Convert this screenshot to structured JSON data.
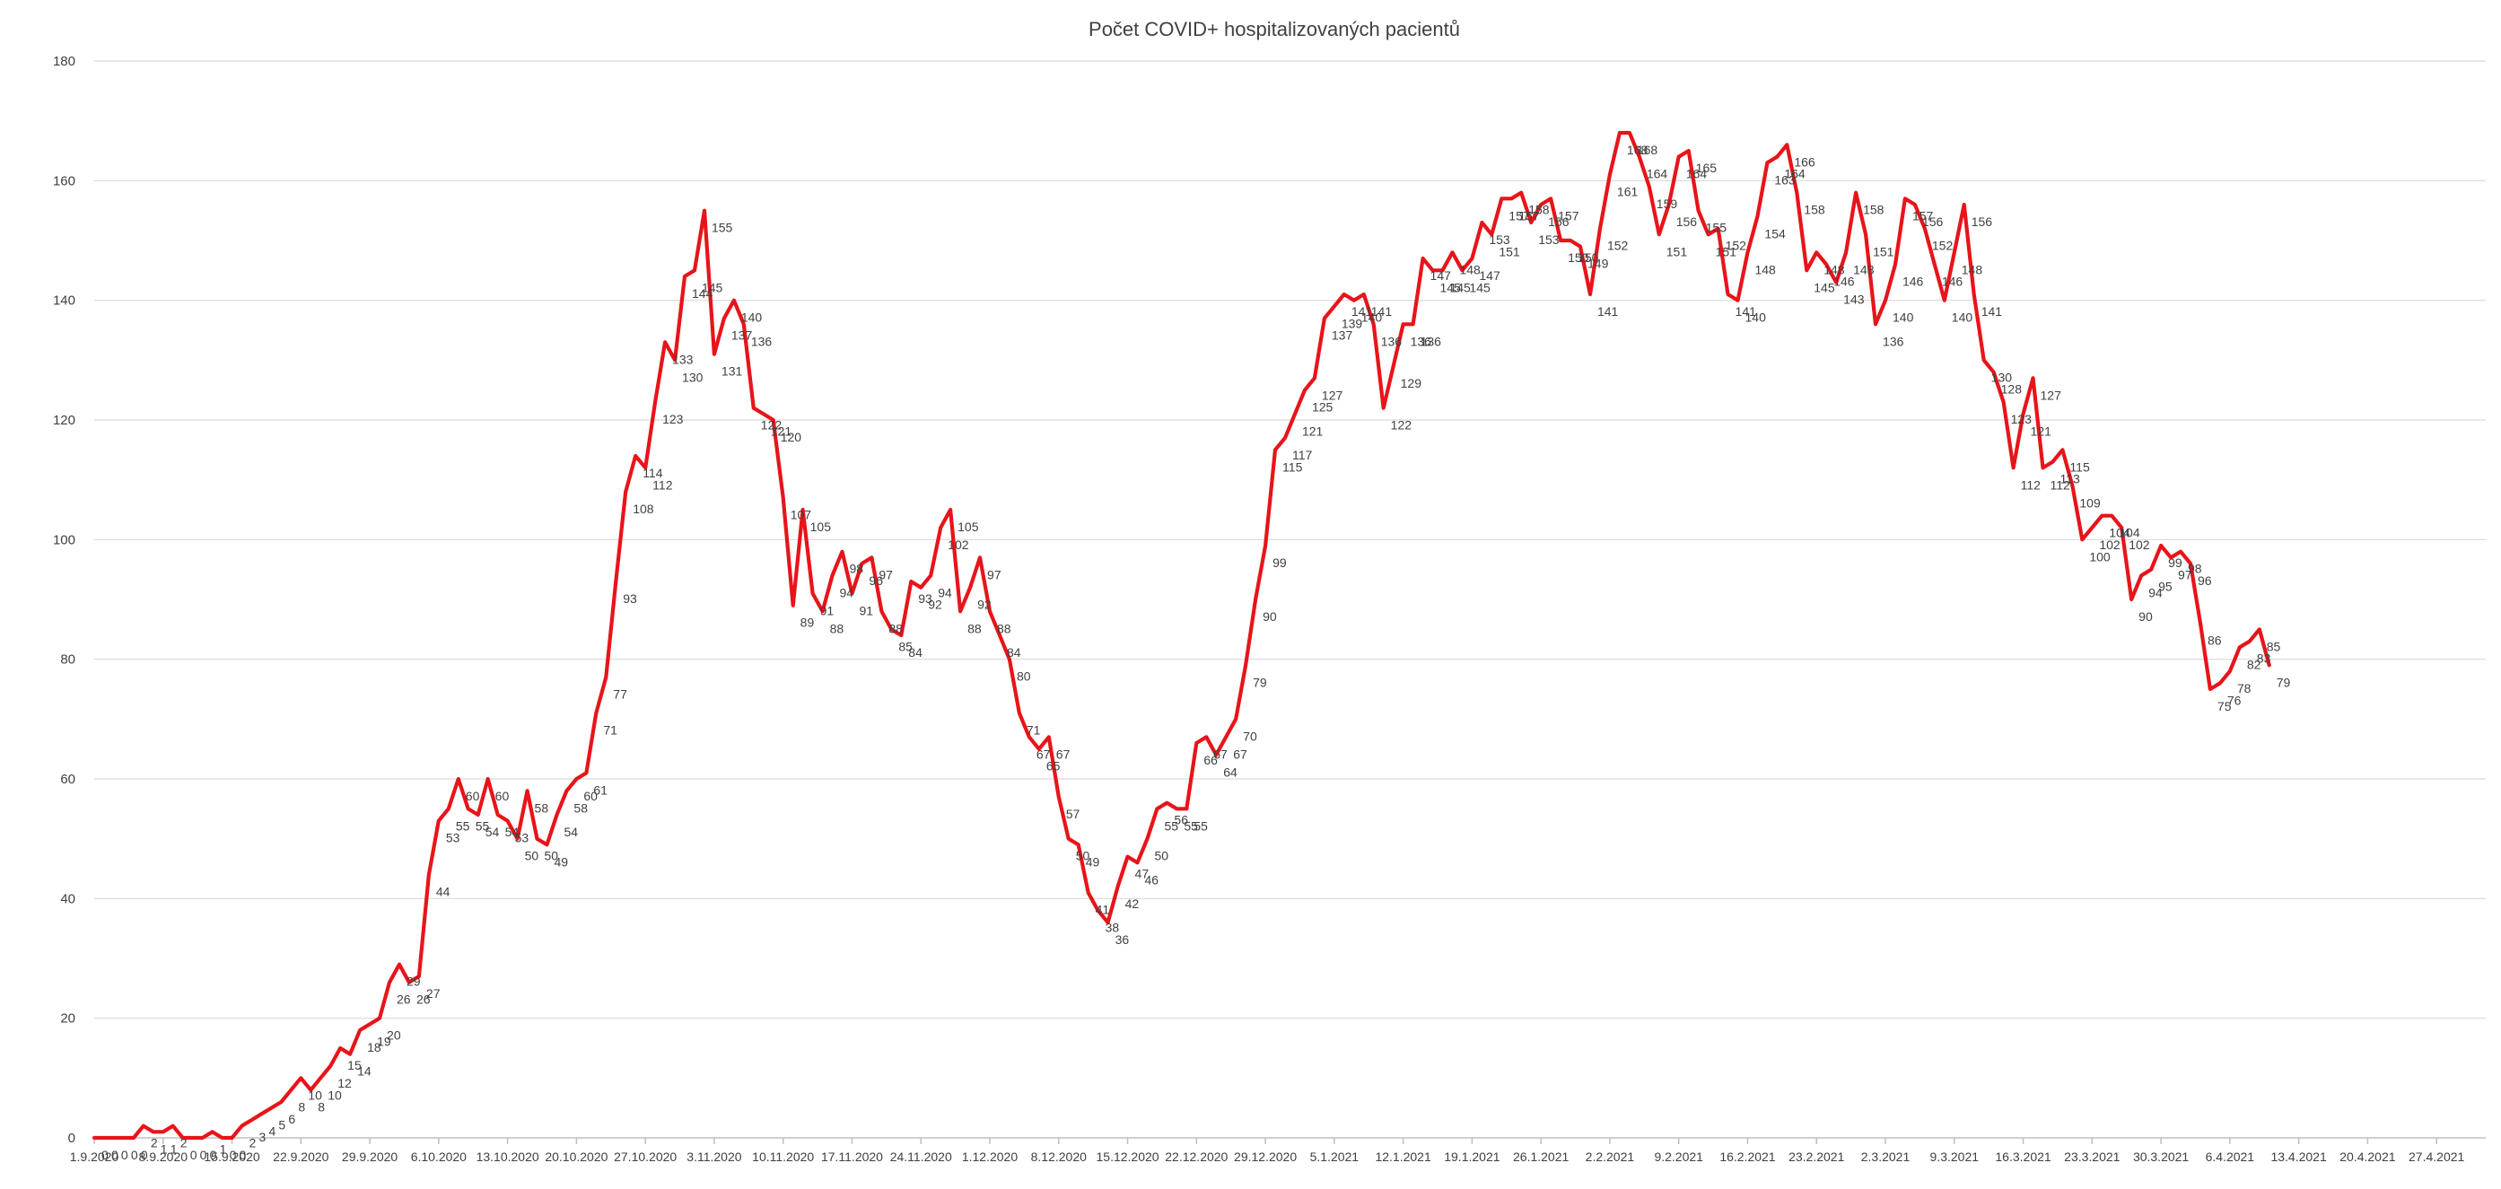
{
  "chart_data": {
    "type": "line",
    "title": "Počet COVID+ hospitalizovaných pacientů",
    "xlabel": "",
    "ylabel": "",
    "ylim": [
      0,
      180
    ],
    "yticks": [
      0,
      20,
      40,
      60,
      80,
      100,
      120,
      140,
      160,
      180
    ],
    "grid": true,
    "legend": "none",
    "x_start": "1.9.2020",
    "x_ticks": [
      "1.9.2020",
      "8.9.2020",
      "15.9.2020",
      "22.9.2020",
      "29.9.2020",
      "6.10.2020",
      "13.10.2020",
      "20.10.2020",
      "27.10.2020",
      "3.11.2020",
      "10.11.2020",
      "17.11.2020",
      "24.11.2020",
      "1.12.2020",
      "8.12.2020",
      "15.12.2020",
      "22.12.2020",
      "29.12.2020",
      "5.1.2021",
      "12.1.2021",
      "19.1.2021",
      "26.1.2021",
      "2.2.2021",
      "9.2.2021",
      "16.2.2021",
      "23.2.2021",
      "2.3.2021",
      "9.3.2021",
      "16.3.2021",
      "23.3.2021",
      "30.3.2021",
      "6.4.2021",
      "13.4.2021",
      "20.4.2021",
      "27.4.2021"
    ],
    "series": [
      {
        "color": "#e8141a",
        "values": [
          0,
          0,
          0,
          0,
          0,
          2,
          1,
          1,
          2,
          0,
          0,
          0,
          1,
          0,
          0,
          2,
          3,
          4,
          5,
          6,
          8,
          10,
          8,
          10,
          12,
          15,
          14,
          18,
          19,
          20,
          26,
          29,
          26,
          27,
          44,
          53,
          55,
          60,
          55,
          54,
          60,
          54,
          53,
          50,
          58,
          50,
          49,
          54,
          58,
          60,
          61,
          71,
          77,
          93,
          108,
          114,
          112,
          123,
          133,
          130,
          144,
          145,
          155,
          131,
          137,
          140,
          136,
          122,
          121,
          120,
          107,
          89,
          105,
          91,
          88,
          94,
          98,
          91,
          96,
          97,
          88,
          85,
          84,
          93,
          92,
          94,
          102,
          105,
          88,
          92,
          97,
          88,
          84,
          80,
          71,
          67,
          65,
          67,
          57,
          50,
          49,
          41,
          38,
          36,
          42,
          47,
          46,
          50,
          55,
          56,
          55,
          55,
          66,
          67,
          64,
          67,
          70,
          79,
          90,
          99,
          115,
          117,
          121,
          125,
          127,
          137,
          139,
          141,
          140,
          141,
          136,
          122,
          129,
          136,
          136,
          147,
          145,
          145,
          148,
          145,
          147,
          153,
          151,
          157,
          157,
          158,
          153,
          156,
          157,
          150,
          150,
          149,
          141,
          152,
          161,
          168,
          168,
          164,
          159,
          151,
          156,
          164,
          165,
          155,
          151,
          152,
          141,
          140,
          148,
          154,
          163,
          164,
          166,
          158,
          145,
          148,
          146,
          143,
          148,
          158,
          151,
          136,
          140,
          146,
          157,
          156,
          152,
          146,
          140,
          148,
          156,
          141,
          130,
          128,
          123,
          112,
          121,
          127,
          112,
          113,
          115,
          109,
          100,
          102,
          104,
          104,
          102,
          90,
          94,
          95,
          99,
          97,
          98,
          96,
          86,
          75,
          76,
          78,
          82,
          83,
          85,
          79
        ]
      }
    ]
  }
}
